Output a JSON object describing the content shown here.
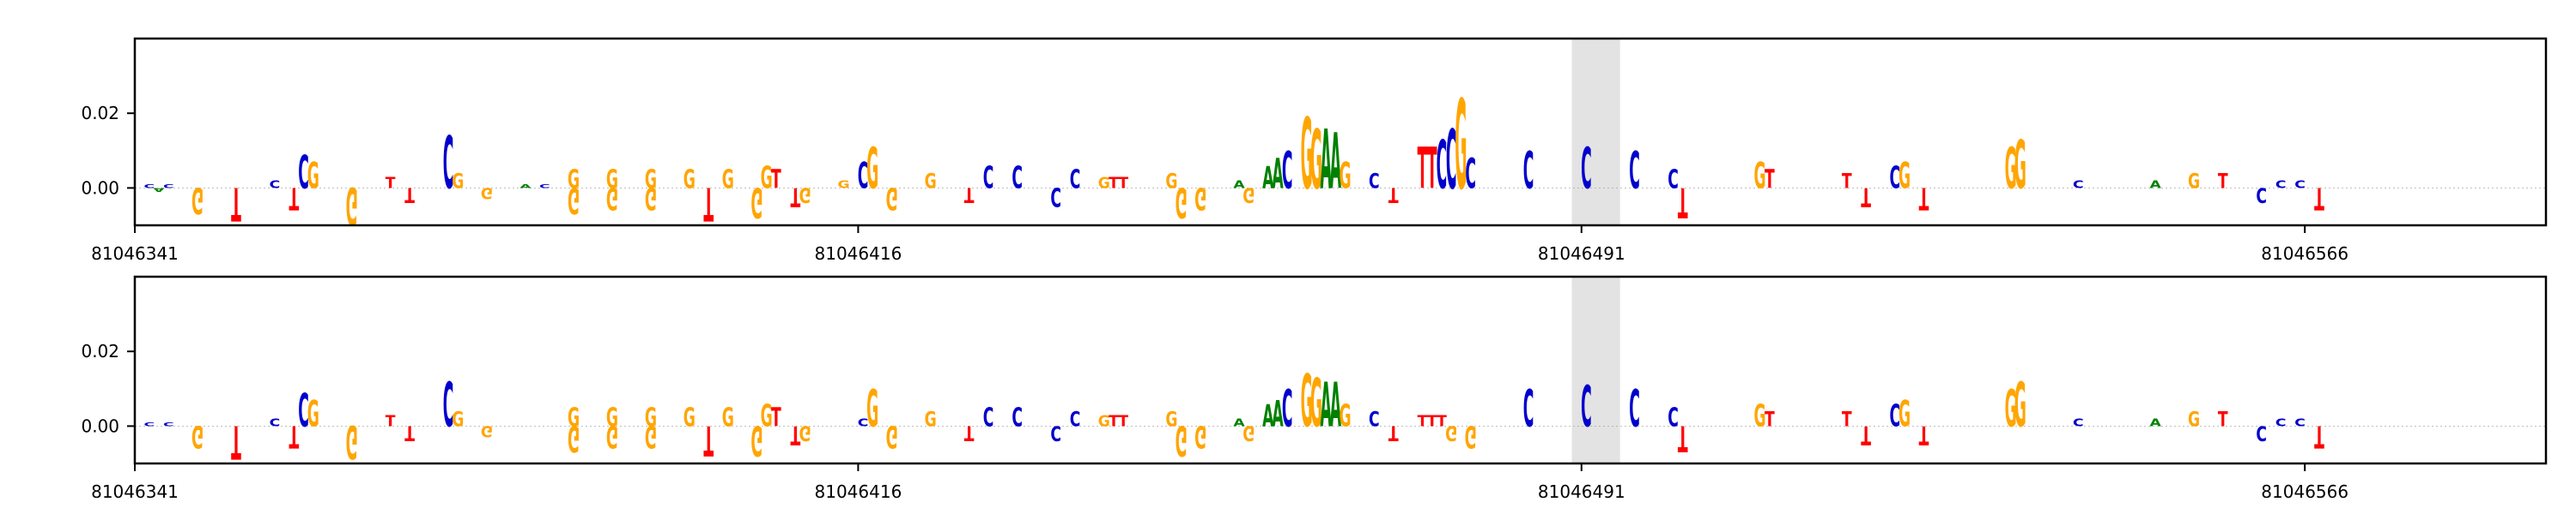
{
  "chart_data": [
    {
      "type": "sequence-logo",
      "panel": "top",
      "title": "",
      "xlabel": "",
      "ylabel": "",
      "x_range": [
        81046341,
        81046591
      ],
      "y_range": [
        -0.01,
        0.04
      ],
      "y_ticks": [
        0.0,
        0.02
      ],
      "y_tick_labels": [
        "0.00",
        "0.02"
      ],
      "x_ticks": [
        81046341,
        81046416,
        81046491,
        81046566
      ],
      "x_tick_labels": [
        "81046341",
        "81046416",
        "81046491",
        "81046566"
      ],
      "highlight_region": [
        81046490,
        81046495
      ],
      "letters": [
        {
          "x": 81046342,
          "base": "C",
          "value": 0.001
        },
        {
          "x": 81046343,
          "base": "A",
          "value": -0.001
        },
        {
          "x": 81046344,
          "base": "C",
          "value": 0.001
        },
        {
          "x": 81046347,
          "base": "G",
          "value": -0.007
        },
        {
          "x": 81046351,
          "base": "T",
          "value": -0.009
        },
        {
          "x": 81046355,
          "base": "C",
          "value": 0.002
        },
        {
          "x": 81046357,
          "base": "T",
          "value": -0.006
        },
        {
          "x": 81046358,
          "base": "C",
          "value": 0.009
        },
        {
          "x": 81046359,
          "base": "G",
          "value": 0.007
        },
        {
          "x": 81046363,
          "base": "G",
          "value": -0.01
        },
        {
          "x": 81046367,
          "base": "T",
          "value": 0.003
        },
        {
          "x": 81046369,
          "base": "T",
          "value": -0.004
        },
        {
          "x": 81046373,
          "base": "C",
          "value": 0.014
        },
        {
          "x": 81046374,
          "base": "G",
          "value": 0.004
        },
        {
          "x": 81046377,
          "base": "G",
          "value": -0.003
        },
        {
          "x": 81046381,
          "base": "A",
          "value": 0.001
        },
        {
          "x": 81046383,
          "base": "C",
          "value": 0.001
        },
        {
          "x": 81046386,
          "base": "G",
          "value": 0.005
        },
        {
          "x": 81046386,
          "base": "G",
          "value": -0.007
        },
        {
          "x": 81046390,
          "base": "G",
          "value": 0.005
        },
        {
          "x": 81046390,
          "base": "G",
          "value": -0.006
        },
        {
          "x": 81046394,
          "base": "G",
          "value": 0.005
        },
        {
          "x": 81046394,
          "base": "G",
          "value": -0.006
        },
        {
          "x": 81046398,
          "base": "G",
          "value": 0.005
        },
        {
          "x": 81046400,
          "base": "T",
          "value": -0.009
        },
        {
          "x": 81046402,
          "base": "G",
          "value": 0.005
        },
        {
          "x": 81046405,
          "base": "G",
          "value": -0.008
        },
        {
          "x": 81046406,
          "base": "G",
          "value": 0.006
        },
        {
          "x": 81046407,
          "base": "T",
          "value": 0.005
        },
        {
          "x": 81046409,
          "base": "T",
          "value": -0.005
        },
        {
          "x": 81046410,
          "base": "G",
          "value": -0.004
        },
        {
          "x": 81046414,
          "base": "G",
          "value": 0.002
        },
        {
          "x": 81046416,
          "base": "C",
          "value": 0.007
        },
        {
          "x": 81046417,
          "base": "G",
          "value": 0.011
        },
        {
          "x": 81046419,
          "base": "G",
          "value": -0.006
        },
        {
          "x": 81046423,
          "base": "G",
          "value": 0.004
        },
        {
          "x": 81046427,
          "base": "T",
          "value": -0.004
        },
        {
          "x": 81046429,
          "base": "C",
          "value": 0.006
        },
        {
          "x": 81046432,
          "base": "C",
          "value": 0.006
        },
        {
          "x": 81046436,
          "base": "C",
          "value": -0.005
        },
        {
          "x": 81046438,
          "base": "C",
          "value": 0.005
        },
        {
          "x": 81046441,
          "base": "G",
          "value": 0.003
        },
        {
          "x": 81046442,
          "base": "T",
          "value": 0.003
        },
        {
          "x": 81046443,
          "base": "T",
          "value": 0.003
        },
        {
          "x": 81046448,
          "base": "G",
          "value": 0.004
        },
        {
          "x": 81046449,
          "base": "G",
          "value": -0.008
        },
        {
          "x": 81046451,
          "base": "G",
          "value": -0.006
        },
        {
          "x": 81046455,
          "base": "A",
          "value": 0.002
        },
        {
          "x": 81046456,
          "base": "G",
          "value": -0.004
        },
        {
          "x": 81046458,
          "base": "A",
          "value": 0.006
        },
        {
          "x": 81046459,
          "base": "A",
          "value": 0.008
        },
        {
          "x": 81046460,
          "base": "C",
          "value": 0.01
        },
        {
          "x": 81046462,
          "base": "G",
          "value": 0.019
        },
        {
          "x": 81046463,
          "base": "G",
          "value": 0.016
        },
        {
          "x": 81046464,
          "base": "A",
          "value": 0.016
        },
        {
          "x": 81046465,
          "base": "A",
          "value": 0.015
        },
        {
          "x": 81046466,
          "base": "G",
          "value": 0.007
        },
        {
          "x": 81046469,
          "base": "C",
          "value": 0.004
        },
        {
          "x": 81046471,
          "base": "T",
          "value": -0.004
        },
        {
          "x": 81046474,
          "base": "T",
          "value": 0.011
        },
        {
          "x": 81046475,
          "base": "T",
          "value": 0.011
        },
        {
          "x": 81046476,
          "base": "C",
          "value": 0.013
        },
        {
          "x": 81046477,
          "base": "C",
          "value": 0.016
        },
        {
          "x": 81046478,
          "base": "G",
          "value": 0.024
        },
        {
          "x": 81046479,
          "base": "C",
          "value": 0.008
        },
        {
          "x": 81046485,
          "base": "C",
          "value": 0.01
        },
        {
          "x": 81046491,
          "base": "C",
          "value": 0.011
        },
        {
          "x": 81046496,
          "base": "C",
          "value": 0.01
        },
        {
          "x": 81046500,
          "base": "C",
          "value": 0.005
        },
        {
          "x": 81046501,
          "base": "T",
          "value": -0.008
        },
        {
          "x": 81046509,
          "base": "G",
          "value": 0.007
        },
        {
          "x": 81046510,
          "base": "T",
          "value": 0.005
        },
        {
          "x": 81046518,
          "base": "T",
          "value": 0.004
        },
        {
          "x": 81046520,
          "base": "T",
          "value": -0.005
        },
        {
          "x": 81046523,
          "base": "C",
          "value": 0.006
        },
        {
          "x": 81046524,
          "base": "G",
          "value": 0.007
        },
        {
          "x": 81046526,
          "base": "T",
          "value": -0.006
        },
        {
          "x": 81046535,
          "base": "G",
          "value": 0.011
        },
        {
          "x": 81046536,
          "base": "G",
          "value": 0.013
        },
        {
          "x": 81046542,
          "base": "C",
          "value": 0.002
        },
        {
          "x": 81046550,
          "base": "A",
          "value": 0.002
        },
        {
          "x": 81046554,
          "base": "G",
          "value": 0.004
        },
        {
          "x": 81046557,
          "base": "T",
          "value": 0.004
        },
        {
          "x": 81046561,
          "base": "C",
          "value": -0.004
        },
        {
          "x": 81046563,
          "base": "C",
          "value": 0.002
        },
        {
          "x": 81046565,
          "base": "C",
          "value": 0.002
        },
        {
          "x": 81046567,
          "base": "T",
          "value": -0.006
        }
      ]
    },
    {
      "type": "sequence-logo",
      "panel": "bottom",
      "title": "",
      "xlabel": "",
      "ylabel": "",
      "x_range": [
        81046341,
        81046591
      ],
      "y_range": [
        -0.01,
        0.04
      ],
      "y_ticks": [
        0.0,
        0.02
      ],
      "y_tick_labels": [
        "0.00",
        "0.02"
      ],
      "x_ticks": [
        81046341,
        81046416,
        81046491,
        81046566
      ],
      "x_tick_labels": [
        "81046341",
        "81046416",
        "81046491",
        "81046566"
      ],
      "highlight_region": [
        81046490,
        81046495
      ],
      "letters": [
        {
          "x": 81046342,
          "base": "C",
          "value": 0.001
        },
        {
          "x": 81046344,
          "base": "C",
          "value": 0.001
        },
        {
          "x": 81046347,
          "base": "G",
          "value": -0.006
        },
        {
          "x": 81046351,
          "base": "T",
          "value": -0.009
        },
        {
          "x": 81046355,
          "base": "C",
          "value": 0.002
        },
        {
          "x": 81046357,
          "base": "T",
          "value": -0.006
        },
        {
          "x": 81046358,
          "base": "C",
          "value": 0.009
        },
        {
          "x": 81046359,
          "base": "G",
          "value": 0.007
        },
        {
          "x": 81046363,
          "base": "G",
          "value": -0.009
        },
        {
          "x": 81046367,
          "base": "T",
          "value": 0.003
        },
        {
          "x": 81046369,
          "base": "T",
          "value": -0.004
        },
        {
          "x": 81046373,
          "base": "C",
          "value": 0.012
        },
        {
          "x": 81046374,
          "base": "G",
          "value": 0.004
        },
        {
          "x": 81046377,
          "base": "G",
          "value": -0.003
        },
        {
          "x": 81046386,
          "base": "G",
          "value": 0.005
        },
        {
          "x": 81046386,
          "base": "G",
          "value": -0.007
        },
        {
          "x": 81046390,
          "base": "G",
          "value": 0.005
        },
        {
          "x": 81046390,
          "base": "G",
          "value": -0.006
        },
        {
          "x": 81046394,
          "base": "G",
          "value": 0.005
        },
        {
          "x": 81046394,
          "base": "G",
          "value": -0.006
        },
        {
          "x": 81046398,
          "base": "G",
          "value": 0.005
        },
        {
          "x": 81046400,
          "base": "T",
          "value": -0.008
        },
        {
          "x": 81046402,
          "base": "G",
          "value": 0.005
        },
        {
          "x": 81046405,
          "base": "G",
          "value": -0.008
        },
        {
          "x": 81046406,
          "base": "G",
          "value": 0.006
        },
        {
          "x": 81046407,
          "base": "T",
          "value": 0.005
        },
        {
          "x": 81046409,
          "base": "T",
          "value": -0.005
        },
        {
          "x": 81046410,
          "base": "G",
          "value": -0.004
        },
        {
          "x": 81046416,
          "base": "C",
          "value": 0.002
        },
        {
          "x": 81046417,
          "base": "G",
          "value": 0.01
        },
        {
          "x": 81046419,
          "base": "G",
          "value": -0.006
        },
        {
          "x": 81046423,
          "base": "G",
          "value": 0.004
        },
        {
          "x": 81046427,
          "base": "T",
          "value": -0.004
        },
        {
          "x": 81046429,
          "base": "C",
          "value": 0.005
        },
        {
          "x": 81046432,
          "base": "C",
          "value": 0.005
        },
        {
          "x": 81046436,
          "base": "C",
          "value": -0.004
        },
        {
          "x": 81046438,
          "base": "C",
          "value": 0.004
        },
        {
          "x": 81046441,
          "base": "G",
          "value": 0.003
        },
        {
          "x": 81046442,
          "base": "T",
          "value": 0.003
        },
        {
          "x": 81046443,
          "base": "T",
          "value": 0.003
        },
        {
          "x": 81046448,
          "base": "G",
          "value": 0.004
        },
        {
          "x": 81046449,
          "base": "G",
          "value": -0.008
        },
        {
          "x": 81046451,
          "base": "G",
          "value": -0.006
        },
        {
          "x": 81046455,
          "base": "A",
          "value": 0.002
        },
        {
          "x": 81046456,
          "base": "G",
          "value": -0.004
        },
        {
          "x": 81046458,
          "base": "A",
          "value": 0.006
        },
        {
          "x": 81046459,
          "base": "A",
          "value": 0.007
        },
        {
          "x": 81046460,
          "base": "C",
          "value": 0.01
        },
        {
          "x": 81046462,
          "base": "G",
          "value": 0.014
        },
        {
          "x": 81046463,
          "base": "G",
          "value": 0.013
        },
        {
          "x": 81046464,
          "base": "A",
          "value": 0.012
        },
        {
          "x": 81046465,
          "base": "A",
          "value": 0.012
        },
        {
          "x": 81046466,
          "base": "G",
          "value": 0.006
        },
        {
          "x": 81046469,
          "base": "C",
          "value": 0.004
        },
        {
          "x": 81046471,
          "base": "T",
          "value": -0.004
        },
        {
          "x": 81046474,
          "base": "T",
          "value": 0.003
        },
        {
          "x": 81046475,
          "base": "T",
          "value": 0.003
        },
        {
          "x": 81046476,
          "base": "T",
          "value": 0.003
        },
        {
          "x": 81046477,
          "base": "G",
          "value": -0.004
        },
        {
          "x": 81046479,
          "base": "G",
          "value": -0.006
        },
        {
          "x": 81046485,
          "base": "C",
          "value": 0.01
        },
        {
          "x": 81046491,
          "base": "C",
          "value": 0.011
        },
        {
          "x": 81046496,
          "base": "C",
          "value": 0.01
        },
        {
          "x": 81046500,
          "base": "C",
          "value": 0.005
        },
        {
          "x": 81046501,
          "base": "T",
          "value": -0.007
        },
        {
          "x": 81046509,
          "base": "G",
          "value": 0.006
        },
        {
          "x": 81046510,
          "base": "T",
          "value": 0.004
        },
        {
          "x": 81046518,
          "base": "T",
          "value": 0.004
        },
        {
          "x": 81046520,
          "base": "T",
          "value": -0.005
        },
        {
          "x": 81046523,
          "base": "C",
          "value": 0.006
        },
        {
          "x": 81046524,
          "base": "G",
          "value": 0.007
        },
        {
          "x": 81046526,
          "base": "T",
          "value": -0.005
        },
        {
          "x": 81046535,
          "base": "G",
          "value": 0.01
        },
        {
          "x": 81046536,
          "base": "G",
          "value": 0.012
        },
        {
          "x": 81046542,
          "base": "C",
          "value": 0.002
        },
        {
          "x": 81046550,
          "base": "A",
          "value": 0.002
        },
        {
          "x": 81046554,
          "base": "G",
          "value": 0.004
        },
        {
          "x": 81046557,
          "base": "T",
          "value": 0.004
        },
        {
          "x": 81046561,
          "base": "C",
          "value": -0.004
        },
        {
          "x": 81046563,
          "base": "C",
          "value": 0.002
        },
        {
          "x": 81046565,
          "base": "C",
          "value": 0.002
        },
        {
          "x": 81046567,
          "base": "T",
          "value": -0.006
        }
      ]
    }
  ],
  "base_colors": {
    "A": "#008000",
    "C": "#0000cc",
    "G": "#ffa500",
    "T": "#ff0000"
  }
}
